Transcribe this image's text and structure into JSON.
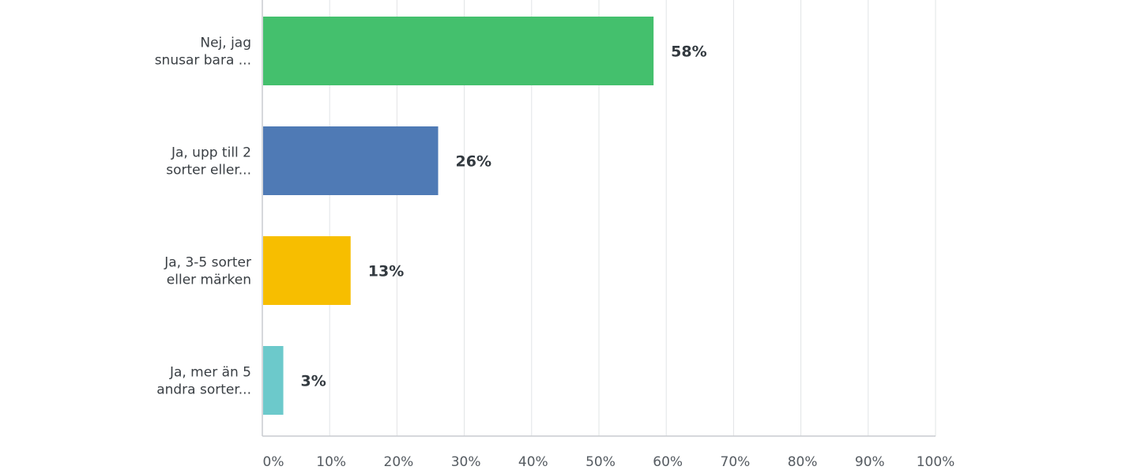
{
  "chart_data": {
    "type": "bar",
    "orientation": "horizontal",
    "categories": [
      [
        "Nej, jag",
        "snusar bara ..."
      ],
      [
        "Ja, upp till 2",
        "sorter eller..."
      ],
      [
        "Ja, 3-5 sorter",
        "eller märken"
      ],
      [
        "Ja, mer än 5",
        "andra sorter..."
      ]
    ],
    "values": [
      58,
      26,
      13,
      3
    ],
    "value_labels": [
      "58%",
      "26%",
      "13%",
      "3%"
    ],
    "colors": [
      "#44c06d",
      "#4f7ab5",
      "#f7be00",
      "#6cc9cb"
    ],
    "xlim": [
      0,
      100
    ],
    "xticks": [
      0,
      10,
      20,
      30,
      40,
      50,
      60,
      70,
      80,
      90,
      100
    ],
    "xtick_labels": [
      "0%",
      "10%",
      "20%",
      "30%",
      "40%",
      "50%",
      "60%",
      "70%",
      "80%",
      "90%",
      "100%"
    ],
    "grid": true,
    "legend": "none"
  }
}
